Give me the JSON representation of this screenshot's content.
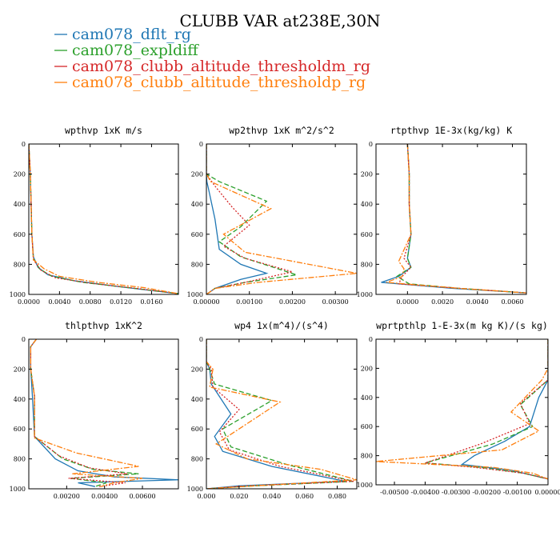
{
  "figure": {
    "title": "CLUBB VAR at238E,30N",
    "legend": [
      {
        "label": "cam078_dflt_rg",
        "color": "#1f77b4",
        "dash": ""
      },
      {
        "label": "cam078_expldiff",
        "color": "#2ca02c",
        "dash": "6,3"
      },
      {
        "label": "cam078_clubb_altitude_thresholdm_rg",
        "color": "#d62728",
        "dash": "2,2"
      },
      {
        "label": "cam078_clubb_altitude_thresholdp_rg",
        "color": "#ff7f0e",
        "dash": "7,2,2,2"
      }
    ]
  },
  "chart_data": [
    {
      "type": "line",
      "title": "wpthvp   1xK m/s",
      "xlim": [
        0,
        0.0195
      ],
      "ylim": [
        1000,
        0
      ],
      "xticks": [
        0.0,
        0.004,
        0.008,
        0.012,
        0.016
      ],
      "xtick_labels": [
        "0.0000",
        "0.0040",
        "0.0080",
        "0.0120",
        "0.0160"
      ],
      "yticks": [
        0,
        200,
        400,
        600,
        800,
        1000
      ],
      "ytick_labels": [
        "0",
        "200",
        "400",
        "600",
        "800",
        "1000"
      ],
      "series": [
        {
          "name": "cam078_dflt_rg",
          "x": [
            0,
            0.0002,
            0.0003,
            0.0004,
            0.0006,
            0.0012,
            0.0025,
            0.006,
            0.012,
            0.0195
          ],
          "y": [
            0,
            200,
            400,
            600,
            750,
            820,
            870,
            910,
            950,
            995
          ]
        },
        {
          "name": "cam078_expldiff",
          "x": [
            0,
            0.0002,
            0.0003,
            0.0004,
            0.0006,
            0.0014,
            0.003,
            0.007,
            0.013,
            0.0195
          ],
          "y": [
            0,
            200,
            400,
            600,
            760,
            830,
            880,
            920,
            955,
            995
          ]
        },
        {
          "name": "cam078_clubb_altitude_thresholdm_rg",
          "x": [
            0,
            0.0002,
            0.0003,
            0.0004,
            0.0006,
            0.0016,
            0.0035,
            0.008,
            0.014,
            0.0195
          ],
          "y": [
            0,
            200,
            400,
            600,
            770,
            840,
            890,
            925,
            960,
            995
          ]
        },
        {
          "name": "cam078_clubb_altitude_thresholdp_rg",
          "x": [
            0,
            0.0002,
            0.0003,
            0.0004,
            0.0006,
            0.002,
            0.004,
            0.009,
            0.015,
            0.0195
          ],
          "y": [
            0,
            200,
            400,
            600,
            770,
            830,
            880,
            920,
            955,
            995
          ]
        }
      ]
    },
    {
      "type": "line",
      "title": "wp2thvp   1xK m^2/s^2",
      "xlim": [
        0,
        0.0035
      ],
      "ylim": [
        1000,
        0
      ],
      "xticks": [
        0.0,
        0.001,
        0.002,
        0.003
      ],
      "xtick_labels": [
        "0.00000",
        "0.00100",
        "0.00200",
        "0.00300"
      ],
      "yticks": [
        0,
        200,
        400,
        600,
        800,
        1000
      ],
      "ytick_labels": [
        "0",
        "200",
        "400",
        "600",
        "800",
        "1000"
      ],
      "series": [
        {
          "name": "cam078_dflt_rg",
          "x": [
            0,
            0,
            1e-05,
            5e-05,
            0.0002,
            0.0003,
            0.0008,
            0.0014,
            0.0008,
            0.0002,
            0
          ],
          "y": [
            0,
            200,
            250,
            300,
            500,
            700,
            800,
            860,
            900,
            960,
            1000
          ]
        },
        {
          "name": "cam078_expldiff",
          "x": [
            0,
            0,
            0.0003,
            0.0014,
            0.0008,
            0.0003,
            0.0008,
            0.0021,
            0.0009,
            0.0002,
            0
          ],
          "y": [
            0,
            200,
            250,
            380,
            550,
            650,
            750,
            870,
            920,
            960,
            1000
          ]
        },
        {
          "name": "cam078_clubb_altitude_thresholdm_rg",
          "x": [
            0,
            0,
            0.0002,
            0.0006,
            0.001,
            0.0004,
            0.0009,
            0.002,
            0.0009,
            0.0002,
            0
          ],
          "y": [
            0,
            200,
            280,
            420,
            540,
            680,
            760,
            850,
            920,
            960,
            1000
          ]
        },
        {
          "name": "cam078_clubb_altitude_thresholdp_rg",
          "x": [
            0,
            0,
            0.0001,
            0.0015,
            0.0004,
            0.0009,
            0.0035,
            0.0012,
            0.0002,
            0
          ],
          "y": [
            0,
            200,
            250,
            430,
            600,
            720,
            860,
            920,
            960,
            1000
          ]
        }
      ]
    },
    {
      "type": "line",
      "title": "rtpthvp   1E-3x(kg/kg) K",
      "xlim": [
        -0.0018,
        0.0068
      ],
      "ylim": [
        1000,
        0
      ],
      "xticks": [
        0.0,
        0.002,
        0.004,
        0.006
      ],
      "xtick_labels": [
        "0.0000",
        "0.0020",
        "0.0040",
        "0.0060"
      ],
      "yticks": [
        0,
        200,
        400,
        600,
        800,
        1000
      ],
      "ytick_labels": [
        "0",
        "200",
        "400",
        "600",
        "800",
        "1000"
      ],
      "series": [
        {
          "name": "cam078_dflt_rg",
          "x": [
            0,
            0.0001,
            0.0001,
            0.0002,
            0,
            0.0002,
            -0.0005,
            -0.0015,
            0.0026,
            0.0068
          ],
          "y": [
            0,
            200,
            400,
            600,
            760,
            820,
            880,
            920,
            960,
            990
          ]
        },
        {
          "name": "cam078_expldiff",
          "x": [
            0,
            0.0001,
            0.0001,
            0.0002,
            0,
            0.0002,
            -0.0006,
            0.0001,
            0.003,
            0.0068
          ],
          "y": [
            0,
            200,
            400,
            600,
            760,
            820,
            880,
            930,
            960,
            990
          ]
        },
        {
          "name": "cam078_clubb_altitude_thresholdm_rg",
          "x": [
            0,
            0.0001,
            0.0001,
            0.0002,
            -0.0002,
            0.0002,
            -0.0003,
            -0.0005,
            0.003,
            0.0068
          ],
          "y": [
            0,
            200,
            400,
            600,
            760,
            820,
            880,
            930,
            960,
            990
          ]
        },
        {
          "name": "cam078_clubb_altitude_thresholdp_rg",
          "x": [
            0,
            0.0001,
            0.0001,
            0.0002,
            -0.0005,
            -0.0002,
            -0.0003,
            -0.0012,
            0.003,
            0.0068
          ],
          "y": [
            0,
            200,
            400,
            600,
            780,
            830,
            880,
            920,
            960,
            990
          ]
        }
      ]
    },
    {
      "type": "line",
      "title": "thlpthvp   1xK^2",
      "xlim": [
        0,
        0.0079
      ],
      "ylim": [
        1000,
        0
      ],
      "xticks": [
        0.002,
        0.004,
        0.006
      ],
      "xtick_labels": [
        "0.00200",
        "0.00400",
        "0.00600"
      ],
      "yticks": [
        0,
        200,
        400,
        600,
        800,
        1000
      ],
      "ytick_labels": [
        "0",
        "200",
        "400",
        "600",
        "800",
        "1000"
      ],
      "series": [
        {
          "name": "cam078_dflt_rg",
          "x": [
            0.0004,
            0.0001,
            0.0001,
            0.0002,
            0.0003,
            0.0014,
            0.0026,
            0.0045,
            0.0079,
            0.0026,
            0.0035
          ],
          "y": [
            0,
            50,
            200,
            400,
            650,
            800,
            880,
            920,
            940,
            960,
            985
          ]
        },
        {
          "name": "cam078_expldiff",
          "x": [
            0.0004,
            0.0001,
            0.0001,
            0.0003,
            0.0003,
            0.0018,
            0.0034,
            0.0058,
            0.0022,
            0.0041,
            0.0035
          ],
          "y": [
            0,
            50,
            200,
            380,
            650,
            800,
            870,
            900,
            930,
            960,
            985
          ]
        },
        {
          "name": "cam078_clubb_altitude_thresholdm_rg",
          "x": [
            0.0004,
            0.0001,
            0.0001,
            0.0003,
            0.0003,
            0.0016,
            0.0032,
            0.0052,
            0.0021,
            0.0051,
            0.0037
          ],
          "y": [
            0,
            50,
            200,
            380,
            650,
            780,
            860,
            900,
            930,
            960,
            985
          ]
        },
        {
          "name": "cam078_clubb_altitude_thresholdp_rg",
          "x": [
            0.0004,
            0.0001,
            0.0001,
            0.0003,
            0.0003,
            0.0025,
            0.0058,
            0.0023,
            0.006,
            0.0045,
            0.0038
          ],
          "y": [
            0,
            50,
            200,
            380,
            660,
            760,
            850,
            900,
            930,
            960,
            985
          ]
        }
      ]
    },
    {
      "type": "line",
      "title": "wp4   1x(m^4)/(s^4)",
      "xlim": [
        0,
        0.092
      ],
      "ylim": [
        1000,
        0
      ],
      "xticks": [
        0.0,
        0.02,
        0.04,
        0.06,
        0.08
      ],
      "xtick_labels": [
        "0.000",
        "0.020",
        "0.040",
        "0.060",
        "0.080"
      ],
      "yticks": [
        0,
        200,
        400,
        600,
        800,
        1000
      ],
      "ytick_labels": [
        "0",
        "200",
        "400",
        "600",
        "800",
        "1000"
      ],
      "series": [
        {
          "name": "cam078_dflt_rg",
          "x": [
            0,
            0,
            0.002,
            0.003,
            0.015,
            0.005,
            0.01,
            0.04,
            0.085,
            0.02,
            0
          ],
          "y": [
            0,
            150,
            200,
            300,
            500,
            650,
            750,
            850,
            950,
            980,
            1000
          ]
        },
        {
          "name": "cam078_expldiff",
          "x": [
            0,
            0,
            0.002,
            0.005,
            0.04,
            0.01,
            0.015,
            0.05,
            0.09,
            0.03,
            0
          ],
          "y": [
            0,
            150,
            200,
            300,
            410,
            600,
            720,
            840,
            950,
            980,
            1000
          ]
        },
        {
          "name": "cam078_clubb_altitude_thresholdm_rg",
          "x": [
            0,
            0,
            0.003,
            0.004,
            0.02,
            0.008,
            0.014,
            0.045,
            0.09,
            0.025,
            0
          ],
          "y": [
            0,
            150,
            200,
            320,
            470,
            620,
            740,
            850,
            950,
            980,
            1000
          ]
        },
        {
          "name": "cam078_clubb_altitude_thresholdp_rg",
          "x": [
            0,
            0,
            0.004,
            0.002,
            0.045,
            0.006,
            0.025,
            0.07,
            0.092,
            0.03,
            0
          ],
          "y": [
            0,
            150,
            200,
            320,
            420,
            700,
            800,
            870,
            940,
            980,
            1000
          ]
        }
      ]
    },
    {
      "type": "line",
      "title": "wprtpthlp   1-E-3x(m kg K)/(s kg)",
      "xlim": [
        -0.0056,
        0.0
      ],
      "ylim": [
        1000,
        0
      ],
      "xticks": [
        -0.005,
        -0.004,
        -0.003,
        -0.002,
        -0.001,
        0.0
      ],
      "xtick_labels": [
        "-0.00500",
        "-0.00400",
        "-0.00300",
        "-0.00200",
        "-0.00100",
        "0.00000"
      ],
      "yticks": [
        0,
        200,
        400,
        600,
        800,
        1000
      ],
      "ytick_labels": [
        "0",
        "200",
        "400",
        "600",
        "800",
        "1000"
      ],
      "series": [
        {
          "name": "cam078_dflt_rg",
          "x": [
            0,
            0,
            0,
            -0.0003,
            -0.0006,
            -0.0014,
            -0.0024,
            -0.0028,
            -0.0012,
            0
          ],
          "y": [
            0,
            200,
            280,
            400,
            600,
            700,
            800,
            860,
            900,
            960
          ]
        },
        {
          "name": "cam078_expldiff",
          "x": [
            0,
            0,
            0,
            -0.0009,
            -0.0005,
            -0.0018,
            -0.004,
            -0.0022,
            -0.0008,
            0
          ],
          "y": [
            0,
            200,
            280,
            450,
            600,
            720,
            850,
            880,
            920,
            960
          ]
        },
        {
          "name": "cam078_clubb_altitude_thresholdm_rg",
          "x": [
            0,
            0,
            0,
            -0.0009,
            -0.0006,
            -0.0022,
            -0.004,
            -0.0024,
            -0.0008,
            0
          ],
          "y": [
            0,
            200,
            280,
            440,
            580,
            720,
            850,
            880,
            920,
            960
          ]
        },
        {
          "name": "cam078_clubb_altitude_thresholdp_rg",
          "x": [
            0,
            0,
            -0.0002,
            -0.0012,
            -0.0003,
            -0.0015,
            -0.0056,
            -0.0018,
            -0.0005,
            0
          ],
          "y": [
            0,
            200,
            280,
            500,
            630,
            760,
            840,
            880,
            920,
            960
          ]
        }
      ]
    }
  ]
}
